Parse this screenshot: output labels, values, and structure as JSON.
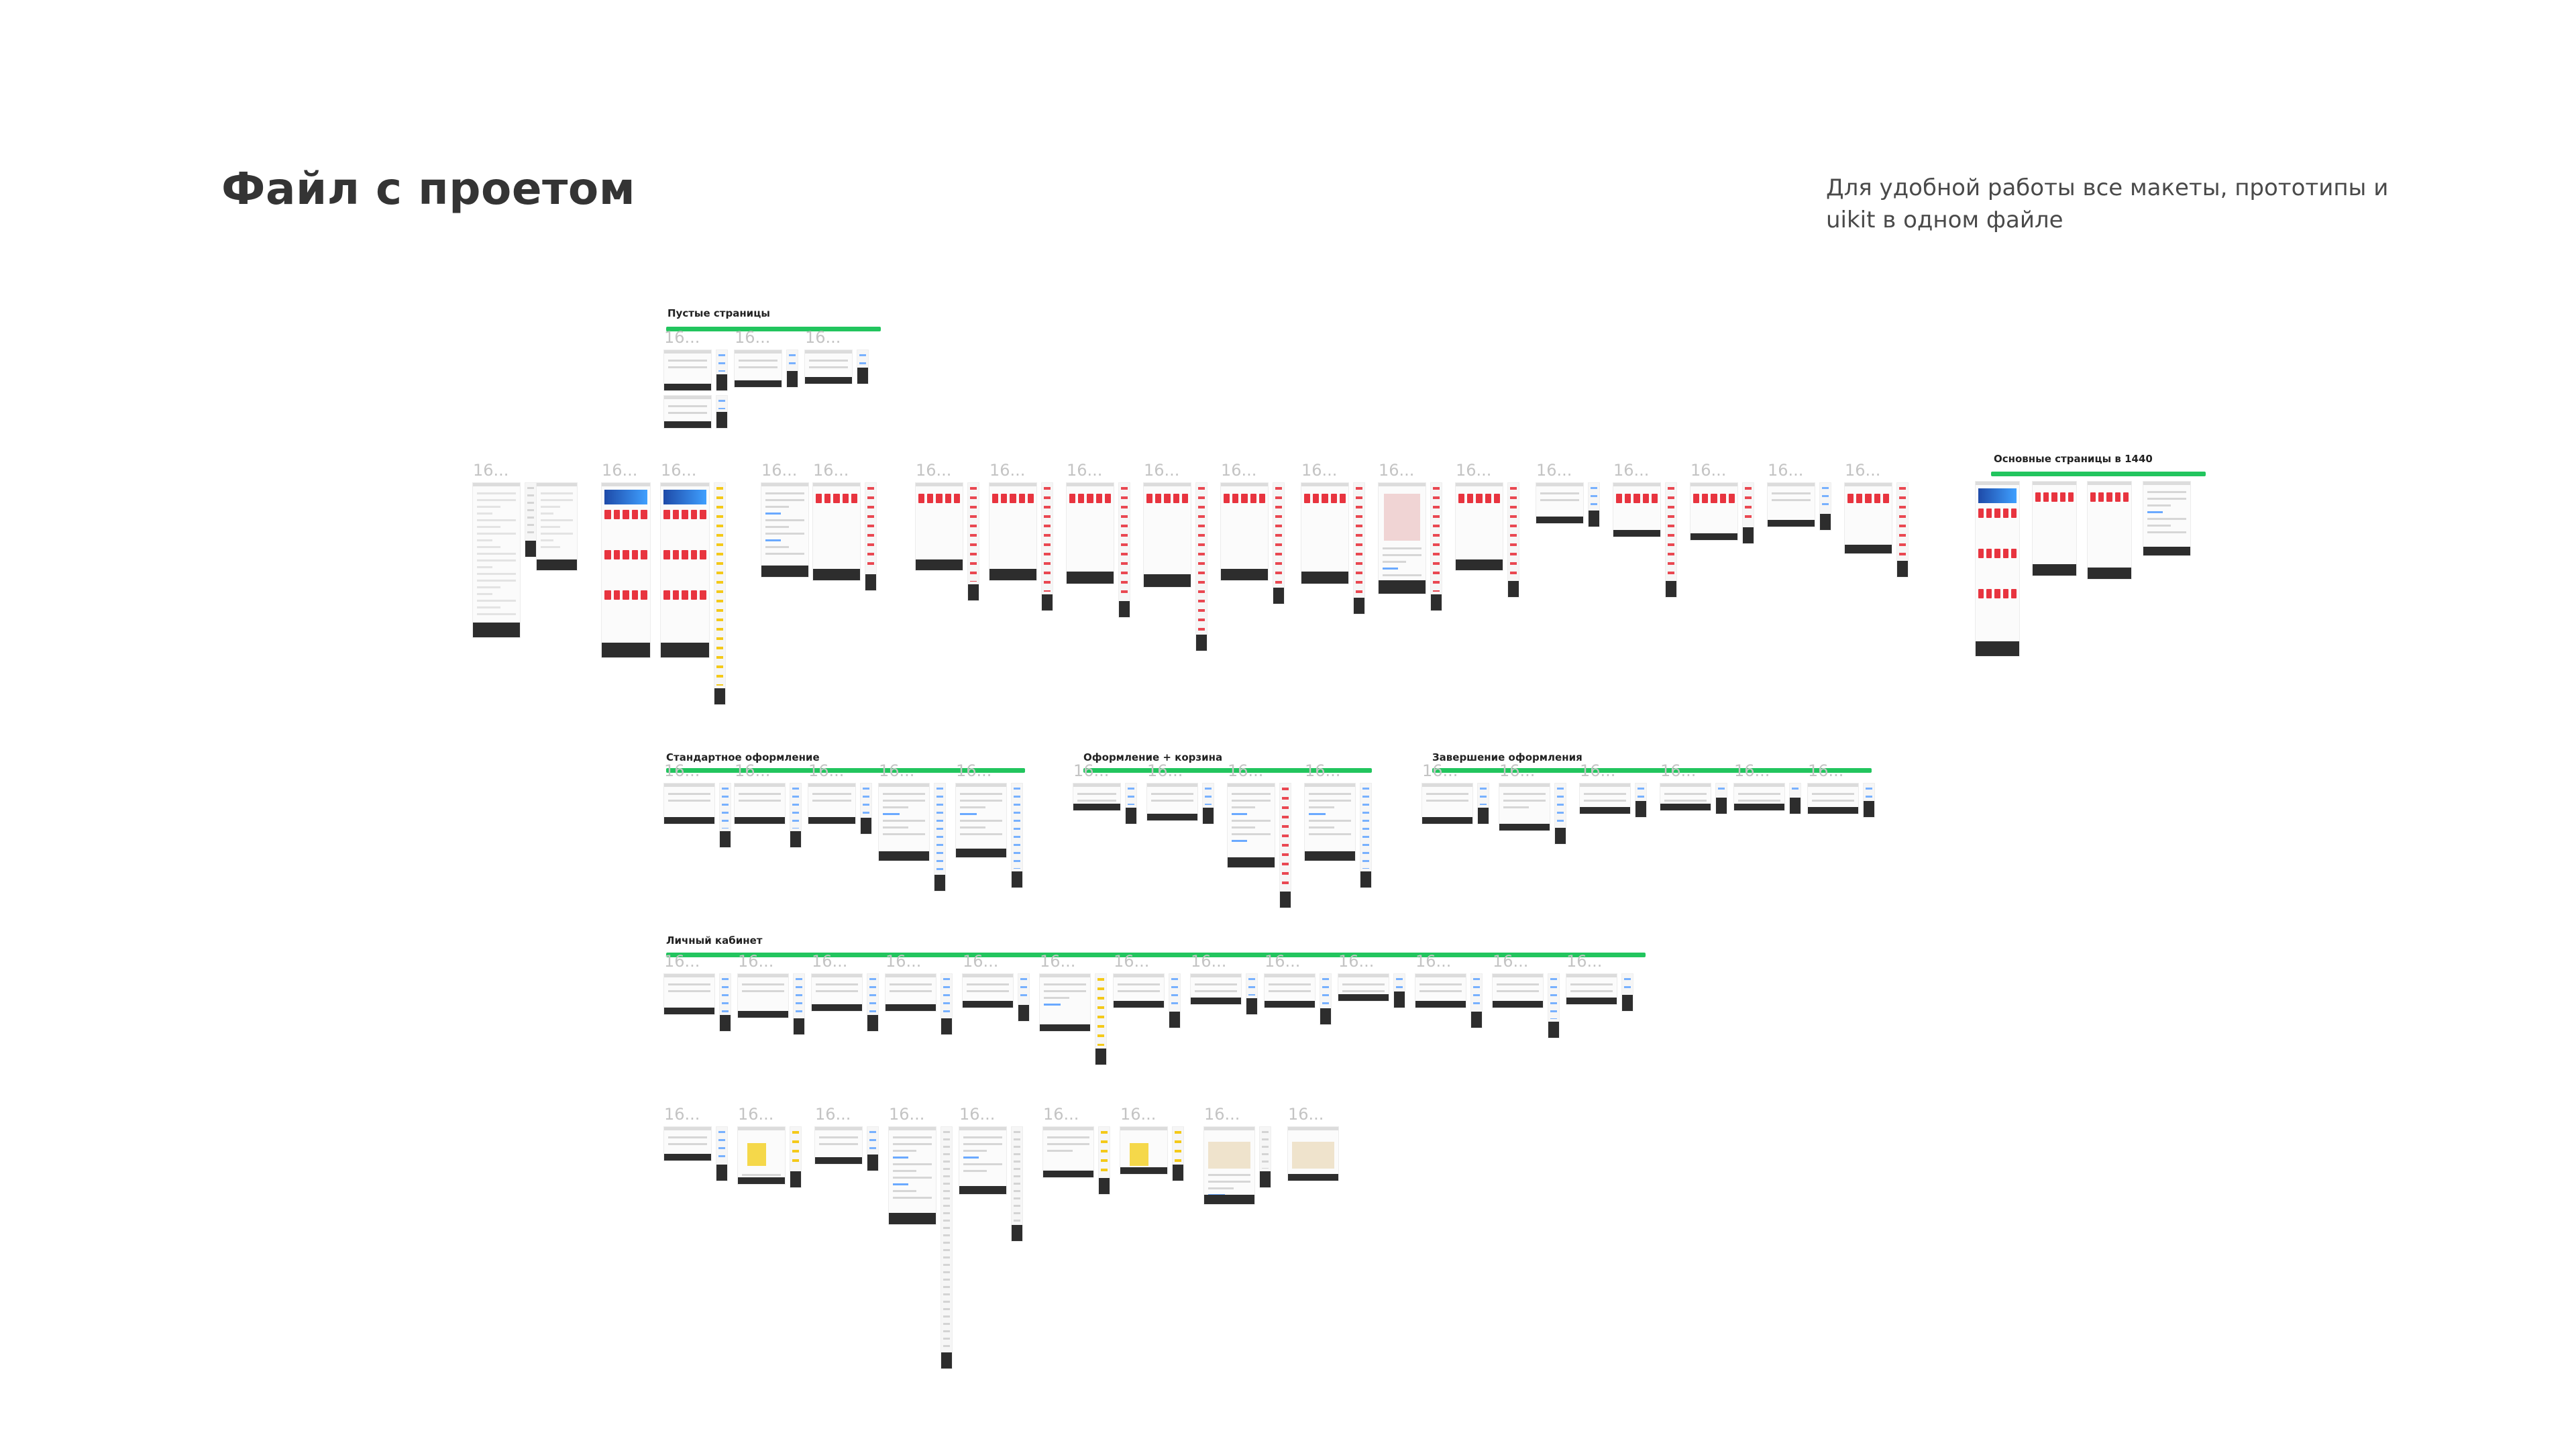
{
  "header": {
    "title": "Файл с проетом",
    "description": "Для удобной работы все макеты, прототипы и uikit в одном файле"
  },
  "sections": {
    "empty_pages": "Пустые страницы",
    "main_pages_1440": "Основные страницы в 1440",
    "standard_checkout": "Стандартное оформление",
    "checkout_cart": "Оформление + корзина",
    "checkout_complete": "Завершение оформления",
    "account": "Личный кабинет"
  },
  "frame_label_text": "16...",
  "colors": {
    "section_bar": "#22c55e",
    "accent_red": "#e8343f",
    "footer_dark": "#2d2d2d",
    "title_text": "#343434"
  }
}
